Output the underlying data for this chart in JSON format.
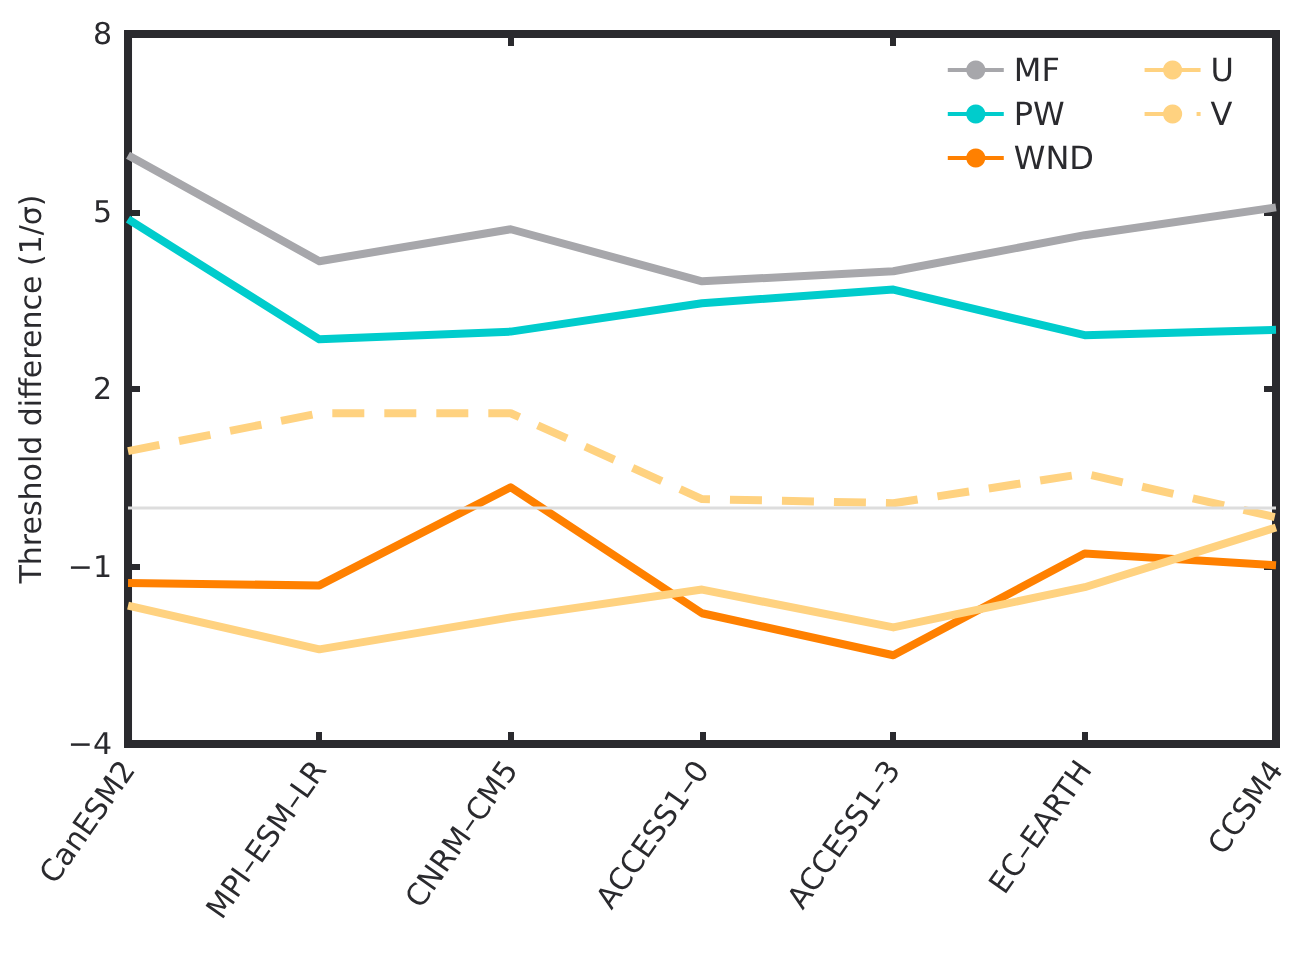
{
  "chart_data": {
    "type": "line",
    "ylabel": "Threshold difference (1/σ)",
    "categories": [
      "CanESM2",
      "MPI–ESM–LR",
      "CNRM–CM5",
      "ACCESS1–0",
      "ACCESS1–3",
      "EC–EARTH",
      "CCSM4"
    ],
    "series": [
      {
        "name": "MF",
        "color": "#a7a7ab",
        "line_style": "solid",
        "values": [
          5.95,
          4.16,
          4.7,
          3.82,
          3.99,
          4.6,
          5.07
        ]
      },
      {
        "name": "PW",
        "color": "#00cccc",
        "line_style": "solid",
        "values": [
          4.87,
          2.84,
          2.97,
          3.45,
          3.68,
          2.91,
          3.0
        ]
      },
      {
        "name": "WND",
        "color": "#ff8000",
        "line_style": "solid",
        "values": [
          -1.28,
          -1.32,
          0.34,
          -1.79,
          -2.5,
          -0.78,
          -0.98
        ]
      },
      {
        "name": "U",
        "color": "#ffd280",
        "line_style": "solid",
        "values": [
          -1.66,
          -2.4,
          -1.86,
          -1.39,
          -2.03,
          -1.35,
          -0.34
        ]
      },
      {
        "name": "V",
        "color": "#ffd280",
        "line_style": "dashed",
        "values": [
          0.95,
          1.59,
          1.59,
          0.14,
          0.07,
          0.57,
          -0.17
        ]
      }
    ],
    "ylim": [
      -4,
      8
    ],
    "yticks": [
      -4,
      -1,
      2,
      5,
      8
    ],
    "ref_lines": [
      {
        "axis": "y",
        "value": 0,
        "color": "#dddddd"
      }
    ],
    "grid": false,
    "legend": "top right",
    "marker": "none"
  }
}
